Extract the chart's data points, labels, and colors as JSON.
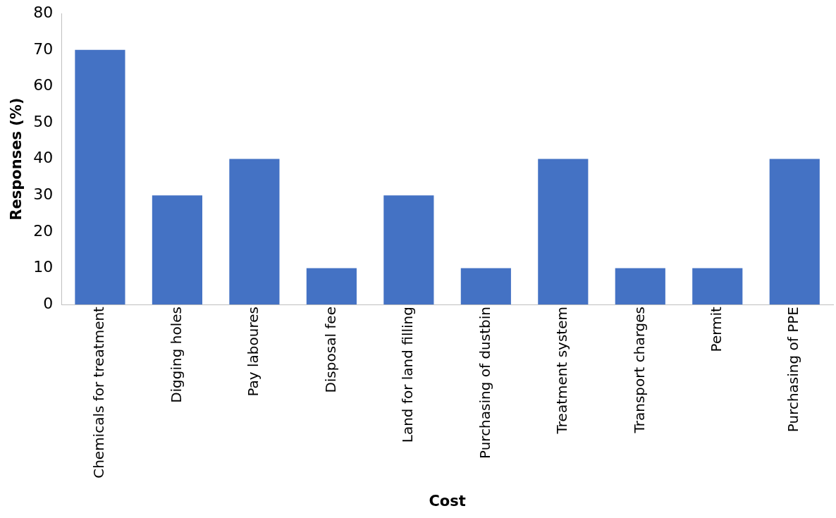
{
  "chart_data": {
    "type": "bar",
    "xlabel": "Cost",
    "ylabel": "Responses (%)",
    "categories": [
      "Chemicals for treatment",
      "Digging holes",
      "Pay laboures",
      "Disposal fee",
      "Land for land filling",
      "Purchasing of dustbin",
      "Treatment system",
      "Transport charges",
      "Permit",
      "Purchasing of PPE"
    ],
    "values": [
      70,
      30,
      40,
      10,
      30,
      10,
      40,
      10,
      10,
      40
    ],
    "color": "#4472c4",
    "ylim": [
      0,
      80
    ],
    "yticks": [
      0,
      10,
      20,
      30,
      40,
      50,
      60,
      70,
      80
    ],
    "grid": false,
    "legend": false
  }
}
